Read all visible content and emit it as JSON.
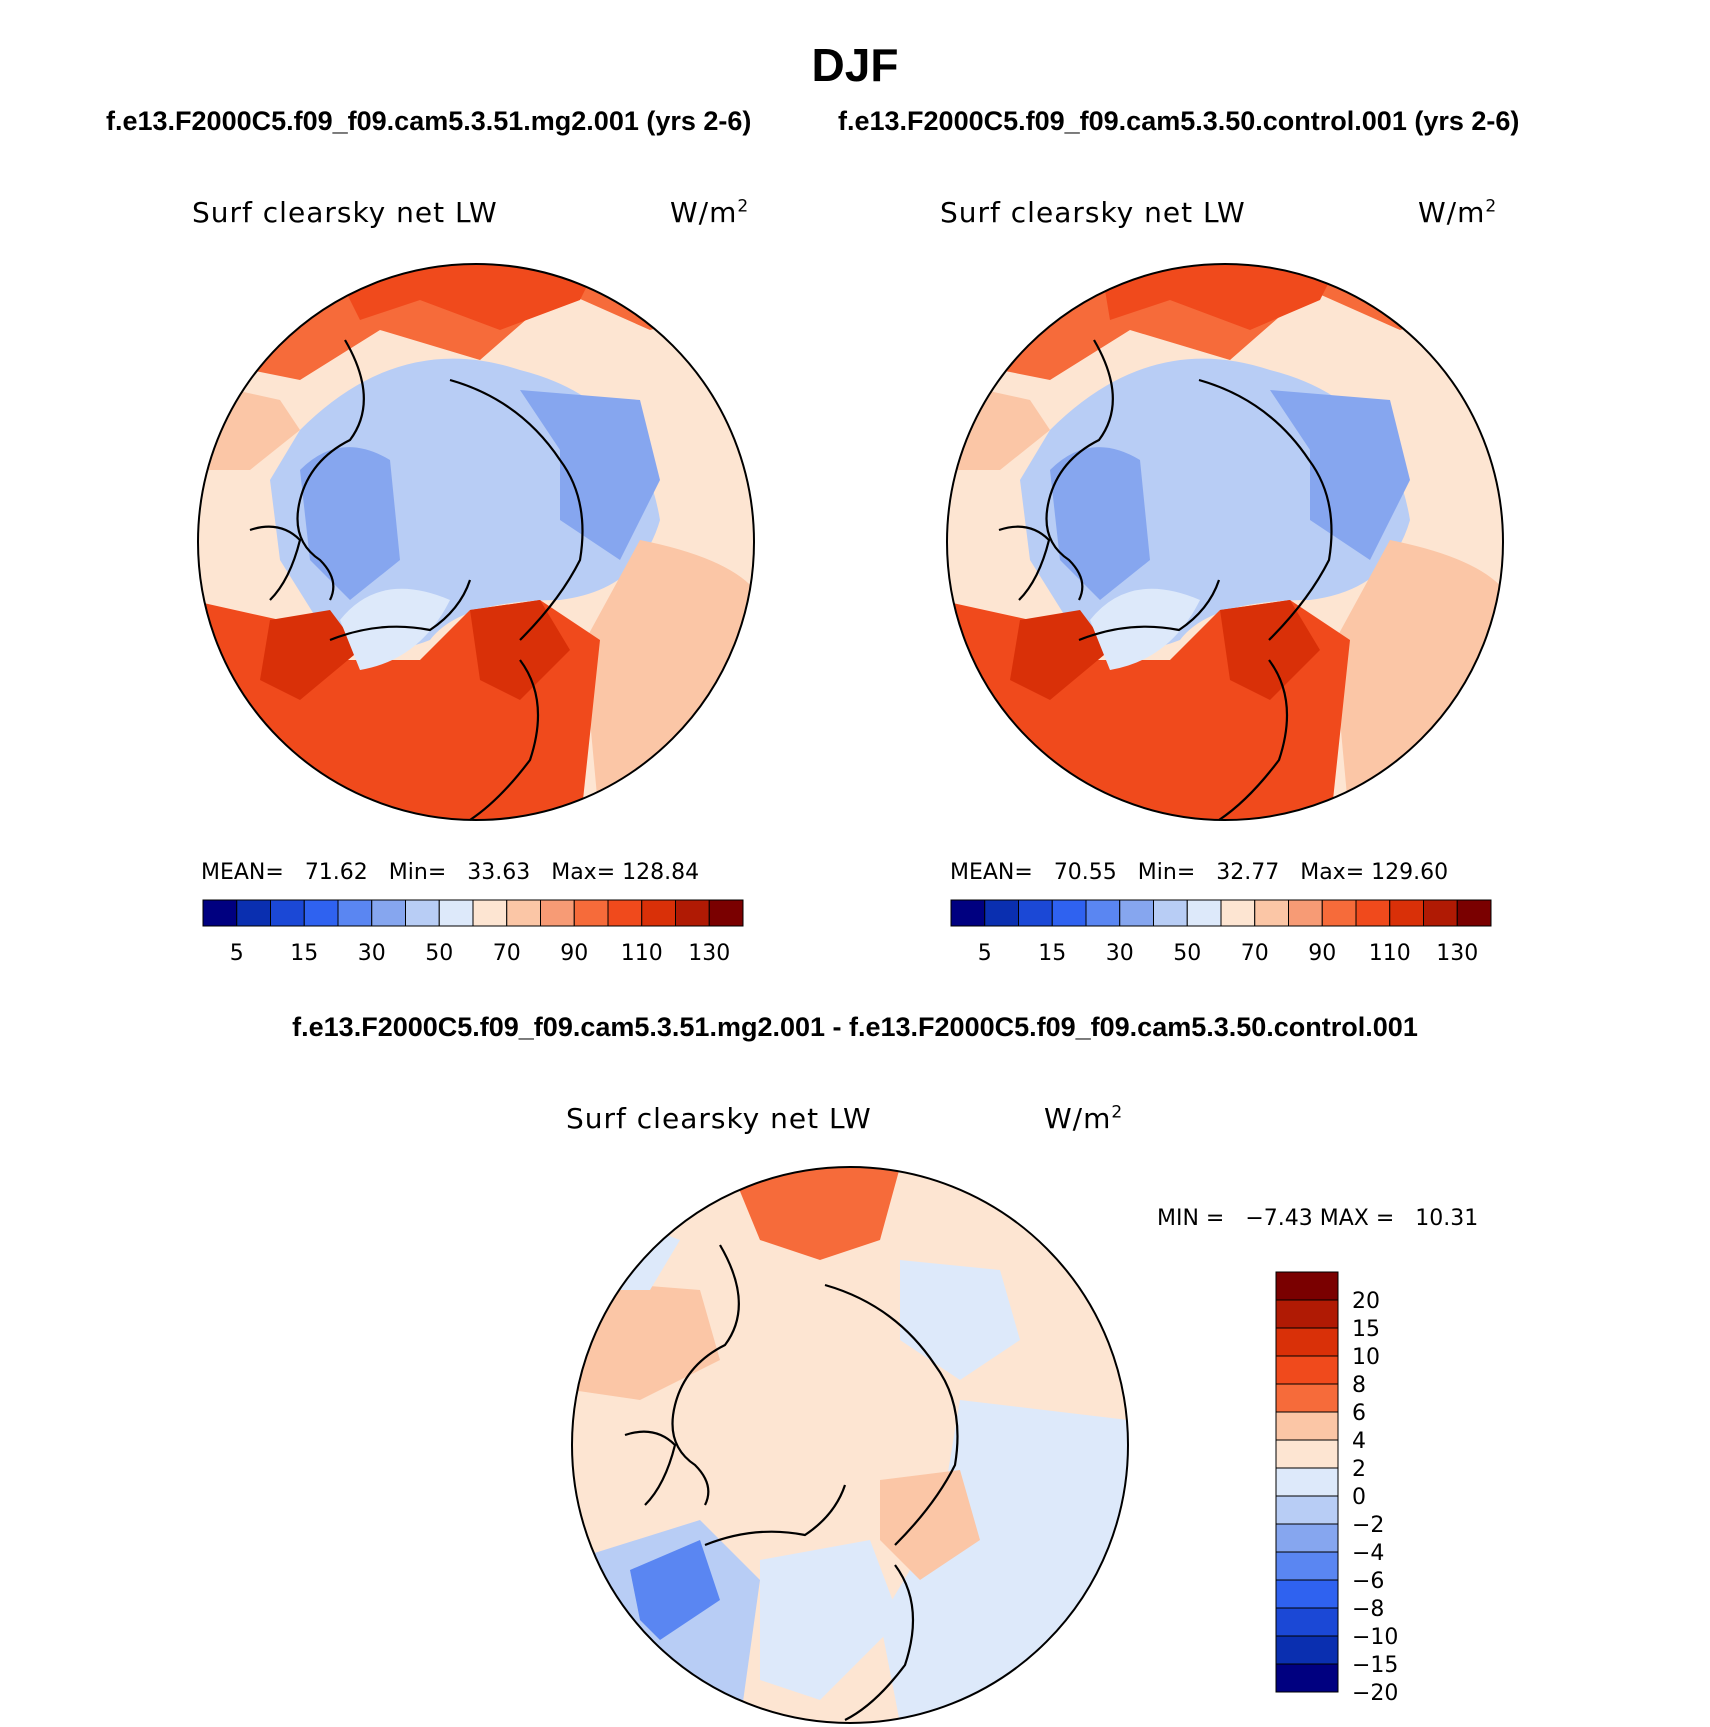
{
  "figure": {
    "season": "DJF",
    "case1_title": "f.e13.F2000C5.f09_f09.cam5.3.51.mg2.001 (yrs 2-6)",
    "case2_title": "f.e13.F2000C5.f09_f09.cam5.3.50.control.001 (yrs 2-6)",
    "diff_title": "f.e13.F2000C5.f09_f09.cam5.3.51.mg2.001 - f.e13.F2000C5.f09_f09.cam5.3.50.control.001"
  },
  "chart_data": [
    {
      "type": "heatmap",
      "projection": "north polar stereographic",
      "title": "Surf clearsky net LW",
      "units_base": "W/m",
      "units_exp": "2",
      "stats": {
        "mean_label": "MEAN=",
        "mean": "71.62",
        "min_label": "Min=",
        "min": "33.63",
        "max_label": "Max=",
        "max": "128.84"
      },
      "colorbar_levels": [
        "5",
        "10",
        "15",
        "20",
        "30",
        "40",
        "50",
        "60",
        "70",
        "80",
        "90",
        "100",
        "110",
        "120",
        "130"
      ],
      "colorbar_labels": [
        "5",
        "15",
        "30",
        "50",
        "70",
        "90",
        "110",
        "130"
      ],
      "colorbar_colors": [
        "#000080",
        "#0a2fb0",
        "#1b48d6",
        "#2f62f0",
        "#5a86f2",
        "#86a6ef",
        "#b8cdf5",
        "#dde9fa",
        "#fde5d2",
        "#fbc6a6",
        "#f79b75",
        "#f66b3a",
        "#f04a1c",
        "#d93008",
        "#b01a04",
        "#7a0000"
      ]
    },
    {
      "type": "heatmap",
      "projection": "north polar stereographic",
      "title": "Surf clearsky net LW",
      "units_base": "W/m",
      "units_exp": "2",
      "stats": {
        "mean_label": "MEAN=",
        "mean": "70.55",
        "min_label": "Min=",
        "min": "32.77",
        "max_label": "Max=",
        "max": "129.60"
      },
      "colorbar_levels": [
        "5",
        "10",
        "15",
        "20",
        "30",
        "40",
        "50",
        "60",
        "70",
        "80",
        "90",
        "100",
        "110",
        "120",
        "130"
      ],
      "colorbar_labels": [
        "5",
        "15",
        "30",
        "50",
        "70",
        "90",
        "110",
        "130"
      ],
      "colorbar_colors": [
        "#000080",
        "#0a2fb0",
        "#1b48d6",
        "#2f62f0",
        "#5a86f2",
        "#86a6ef",
        "#b8cdf5",
        "#dde9fa",
        "#fde5d2",
        "#fbc6a6",
        "#f79b75",
        "#f66b3a",
        "#f04a1c",
        "#d93008",
        "#b01a04",
        "#7a0000"
      ]
    },
    {
      "type": "heatmap",
      "projection": "north polar stereographic",
      "title": "Surf clearsky net LW",
      "units_base": "W/m",
      "units_exp": "2",
      "stats": {
        "min_label": "MIN =",
        "min": "−7.43",
        "max_label": "MAX =",
        "max": "10.31"
      },
      "colorbar_labels": [
        "20",
        "15",
        "10",
        "8",
        "6",
        "4",
        "2",
        "0",
        "−2",
        "−4",
        "−6",
        "−8",
        "−10",
        "−15",
        "−20"
      ],
      "colorbar_colors": [
        "#7a0000",
        "#b01a04",
        "#d93008",
        "#f04a1c",
        "#f66b3a",
        "#fbc6a6",
        "#fde5d2",
        "#dde9fa",
        "#b8cdf5",
        "#86a6ef",
        "#5a86f2",
        "#2f62f0",
        "#1b48d6",
        "#0a2fb0",
        "#000080"
      ]
    }
  ]
}
